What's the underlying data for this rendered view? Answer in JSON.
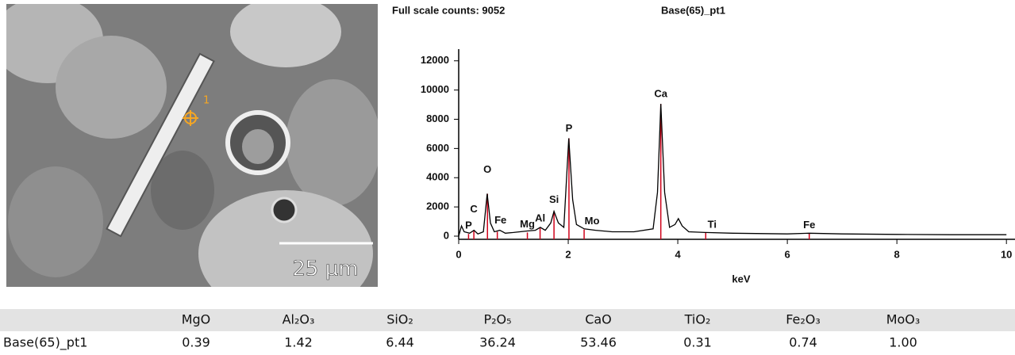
{
  "image": {
    "marker_label": "1",
    "scale_bar": "25 µm"
  },
  "chart_data": {
    "type": "line",
    "title": "Full scale counts: 9052",
    "subtitle": "Base(65)_pt1",
    "x_label": "keV",
    "x": [
      0.0,
      0.05,
      0.1,
      0.2,
      0.28,
      0.35,
      0.45,
      0.52,
      0.58,
      0.65,
      0.75,
      0.85,
      1.0,
      1.25,
      1.4,
      1.49,
      1.58,
      1.68,
      1.74,
      1.82,
      1.92,
      2.01,
      2.08,
      2.15,
      2.29,
      2.5,
      2.8,
      3.2,
      3.55,
      3.63,
      3.69,
      3.76,
      3.85,
      3.95,
      4.01,
      4.08,
      4.2,
      4.5,
      5.0,
      6.0,
      6.4,
      7.0,
      8.0,
      9.0,
      10.0
    ],
    "values": [
      0,
      700,
      300,
      200,
      400,
      150,
      300,
      2900,
      900,
      300,
      400,
      200,
      250,
      350,
      400,
      600,
      400,
      900,
      1700,
      900,
      600,
      6700,
      2500,
      800,
      500,
      400,
      300,
      300,
      500,
      3000,
      9050,
      3000,
      600,
      800,
      1200,
      700,
      300,
      250,
      200,
      150,
      200,
      150,
      120,
      100,
      100
    ],
    "color": "#000000",
    "markers": [
      {
        "label": "C",
        "energy": 0.277,
        "count": 400
      },
      {
        "label": "P",
        "energy": 0.18,
        "count": 150
      },
      {
        "label": "O",
        "energy": 0.525,
        "count": 2900
      },
      {
        "label": "Fe",
        "energy": 0.705,
        "count": 300
      },
      {
        "label": "Mg",
        "energy": 1.254,
        "count": 250
      },
      {
        "label": "Al",
        "energy": 1.486,
        "count": 550
      },
      {
        "label": "Si",
        "energy": 1.74,
        "count": 1700
      },
      {
        "label": "P",
        "energy": 2.013,
        "count": 6700
      },
      {
        "label": "Mo",
        "energy": 2.29,
        "count": 450
      },
      {
        "label": "Ca",
        "energy": 3.69,
        "count": 9050
      },
      {
        "label": "Ti",
        "energy": 4.51,
        "count": 220
      },
      {
        "label": "Fe",
        "energy": 6.4,
        "count": 200
      }
    ],
    "marker_color": "#d0021b",
    "xlim": [
      0,
      10.2
    ],
    "xticks": [
      0,
      2,
      4,
      6,
      8,
      10
    ],
    "ylim": [
      0,
      12800
    ],
    "yticks": [
      0,
      2000,
      4000,
      6000,
      8000,
      10000,
      12000
    ]
  },
  "table": {
    "columns": [
      "MgO",
      "Al₂O₃",
      "SiO₂",
      "P₂O₅",
      "CaO",
      "TiO₂",
      "Fe₂O₃",
      "MoO₃"
    ],
    "rows": [
      {
        "label": "Base(65)_pt1",
        "values": [
          "0.39",
          "1.42",
          "6.44",
          "36.24",
          "53.46",
          "0.31",
          "0.74",
          "1.00"
        ]
      }
    ]
  }
}
